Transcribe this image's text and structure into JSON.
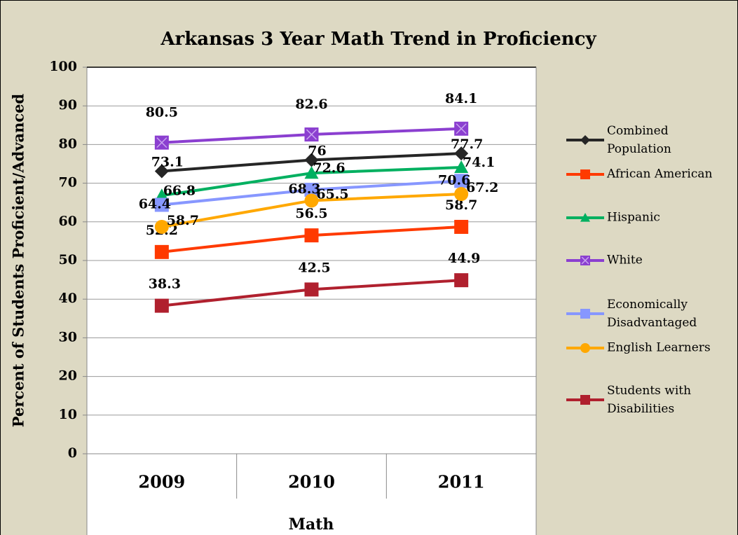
{
  "chart_data": {
    "type": "line",
    "title": "Arkansas 3 Year Math Trend in Proficiency",
    "x_label": "Math",
    "y_label": "Percent of Students Proficient/Advanced",
    "categories": [
      "2009",
      "2010",
      "2011"
    ],
    "ylim": [
      0,
      100
    ],
    "yticks": [
      0,
      10,
      20,
      30,
      40,
      50,
      60,
      70,
      80,
      90,
      100
    ],
    "grid": true,
    "legend": "right",
    "series": [
      {
        "name": "Combined Population",
        "color": "#262626",
        "marker": "diamond",
        "values": [
          73.1,
          76,
          77.7
        ]
      },
      {
        "name": "African American",
        "color": "#ff3a00",
        "marker": "square",
        "values": [
          52.2,
          56.5,
          58.7
        ]
      },
      {
        "name": "Hispanic",
        "color": "#00b060",
        "marker": "triangle",
        "values": [
          66.8,
          72.6,
          74.1
        ]
      },
      {
        "name": "White",
        "color": "#8b3fd0",
        "marker": "square-x",
        "values": [
          80.5,
          82.6,
          84.1
        ]
      },
      {
        "name": "Economically Disadvantaged",
        "color": "#8797ff",
        "marker": "square",
        "values": [
          64.4,
          68.3,
          70.6
        ]
      },
      {
        "name": "English Learners",
        "color": "#ffa800",
        "marker": "circle",
        "values": [
          58.7,
          65.5,
          67.2
        ]
      },
      {
        "name": "Students with Disabilities",
        "color": "#b0202e",
        "marker": "square",
        "values": [
          38.3,
          42.5,
          44.9
        ]
      }
    ]
  }
}
